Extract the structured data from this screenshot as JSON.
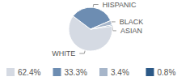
{
  "chart_data": {
    "type": "pie",
    "categories": [
      "WHITE",
      "HISPANIC",
      "BLACK",
      "ASIAN"
    ],
    "values": [
      62.4,
      33.3,
      3.4,
      0.8
    ],
    "value_labels": [
      "62.4%",
      "33.3%",
      "3.4%",
      "0.8%"
    ],
    "colors": [
      "#d5dae3",
      "#6d8db2",
      "#a7b6ca",
      "#2c5987"
    ],
    "legend": "bottom"
  }
}
